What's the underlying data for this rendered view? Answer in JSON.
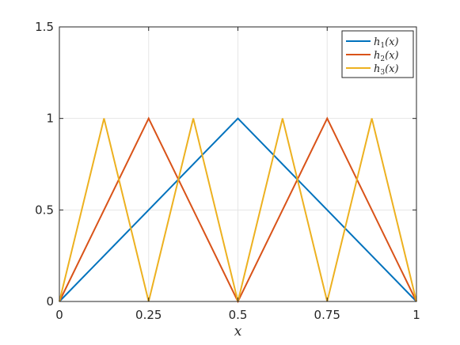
{
  "chart_data": {
    "type": "line",
    "title": "",
    "xlabel": "x",
    "ylabel": "",
    "xlim": [
      0,
      1
    ],
    "ylim": [
      0,
      1.5
    ],
    "xticks": [
      0,
      0.25,
      0.5,
      0.75,
      1
    ],
    "xtick_labels": [
      "0",
      "0.25",
      "0.5",
      "0.75",
      "1"
    ],
    "yticks": [
      0,
      0.5,
      1,
      1.5
    ],
    "ytick_labels": [
      "0",
      "0.5",
      "1",
      "1.5"
    ],
    "grid": true,
    "legend_position": "top-right",
    "series": [
      {
        "name": "h1(x)",
        "legend_base": "h",
        "legend_sub": "1",
        "legend_arg": "(x)",
        "color": "#0072BD",
        "x": [
          0,
          0.5,
          1
        ],
        "y": [
          0,
          1,
          0
        ]
      },
      {
        "name": "h2(x)",
        "legend_base": "h",
        "legend_sub": "2",
        "legend_arg": "(x)",
        "color": "#D95319",
        "x": [
          0,
          0.25,
          0.5,
          0.75,
          1
        ],
        "y": [
          0,
          1,
          0,
          1,
          0
        ]
      },
      {
        "name": "h3(x)",
        "legend_base": "h",
        "legend_sub": "3",
        "legend_arg": "(x)",
        "color": "#EDB120",
        "x": [
          0,
          0.125,
          0.25,
          0.375,
          0.5,
          0.625,
          0.75,
          0.875,
          1
        ],
        "y": [
          0,
          1,
          0,
          1,
          0,
          1,
          0,
          1,
          0
        ]
      }
    ]
  }
}
